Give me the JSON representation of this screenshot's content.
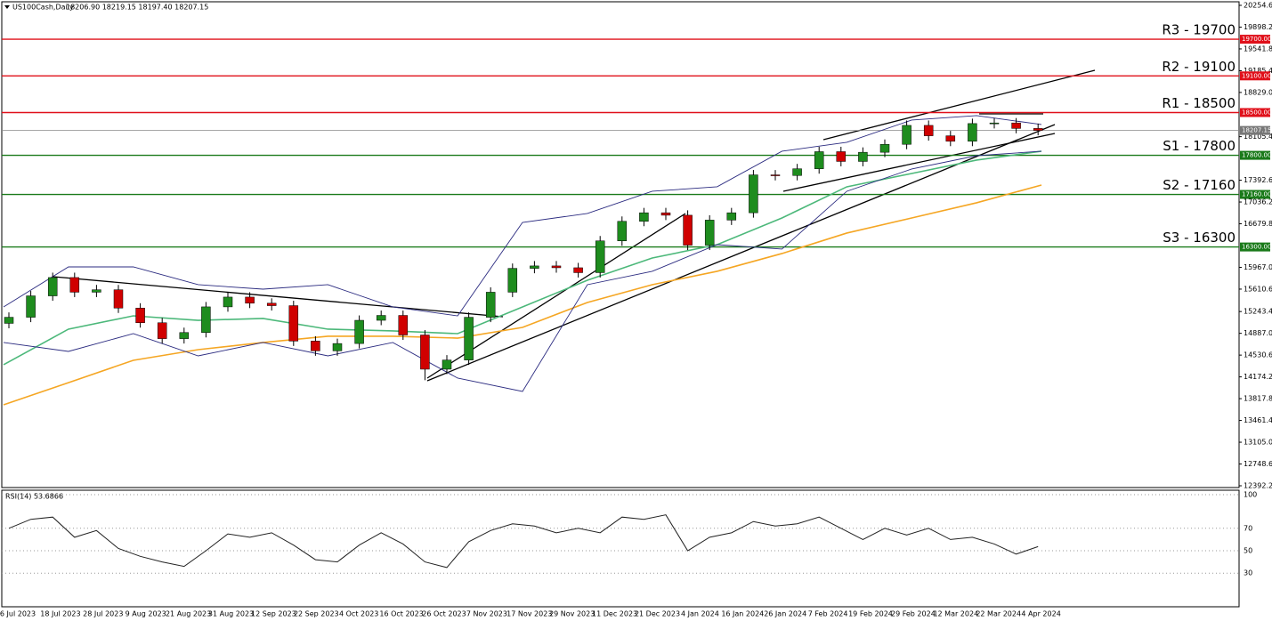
{
  "header": {
    "title": "US100Cash,Daily",
    "ohlc": "18206.90 18219.15 18197.40 18207.15"
  },
  "chart_data": [
    {
      "type": "candlestick",
      "ylim": [
        12392.2,
        20254.6
      ],
      "yticks": [
        {
          "value": 20254.6,
          "label": "20254.60"
        },
        {
          "value": 19898.2,
          "label": "19898.20"
        },
        {
          "value": 19541.8,
          "label": "19541.80"
        },
        {
          "value": 19185.4,
          "label": "19185.40"
        },
        {
          "value": 18829,
          "label": "18829.00"
        },
        {
          "value": 18105.4,
          "label": "18105.40"
        },
        {
          "value": 17392.6,
          "label": "17392.60"
        },
        {
          "value": 17036.2,
          "label": "17036.20"
        },
        {
          "value": 16679.8,
          "label": "16679.80"
        },
        {
          "value": 15967,
          "label": "15967.00"
        },
        {
          "value": 15610.6,
          "label": "15610.60"
        },
        {
          "value": 15243.4,
          "label": "15243.40"
        },
        {
          "value": 14887,
          "label": "14887.00"
        },
        {
          "value": 14530.6,
          "label": "14530.60"
        },
        {
          "value": 14174.2,
          "label": "14174.20"
        },
        {
          "value": 13817.8,
          "label": "13817.80"
        },
        {
          "value": 13461.4,
          "label": "13461.40"
        },
        {
          "value": 13105,
          "label": "13105.00"
        },
        {
          "value": 12748.6,
          "label": "12748.60"
        },
        {
          "value": 12392.2,
          "label": "12392.20"
        }
      ],
      "x_labels": [
        "6 Jul 2023",
        "18 Jul 2023",
        "28 Jul 2023",
        "9 Aug 2023",
        "21 Aug 2023",
        "31 Aug 2023",
        "12 Sep 2023",
        "22 Sep 2023",
        "4 Oct 2023",
        "16 Oct 2023",
        "26 Oct 2023",
        "7 Nov 2023",
        "17 Nov 2023",
        "29 Nov 2023",
        "11 Dec 2023",
        "21 Dec 2023",
        "4 Jan 2024",
        "16 Jan 2024",
        "26 Jan 2024",
        "7 Feb 2024",
        "19 Feb 2024",
        "29 Feb 2024",
        "12 Mar 2024",
        "22 Mar 2024",
        "4 Apr 2024"
      ],
      "open": [
        15050,
        15150,
        15500,
        15800,
        15560,
        15600,
        15300,
        15060,
        14800,
        14900,
        15320,
        15480,
        15380,
        15340,
        14760,
        14600,
        14720,
        15100,
        15180,
        14860,
        14300,
        14450,
        15150,
        15560,
        15950,
        15990,
        15960,
        15880,
        16400,
        16720,
        16860,
        16820,
        16330,
        16740,
        16860,
        17480,
        17470,
        17580,
        17860,
        17700,
        17850,
        17980,
        18290,
        18120,
        18030,
        18320,
        18330,
        18240
      ],
      "high": [
        15230,
        15580,
        15880,
        15880,
        15680,
        15680,
        15380,
        15140,
        14980,
        15400,
        15560,
        15560,
        15460,
        15420,
        14840,
        14800,
        15180,
        15260,
        15260,
        14940,
        14530,
        15230,
        15640,
        16030,
        16070,
        16070,
        16040,
        16480,
        16800,
        16940,
        16940,
        16900,
        16820,
        16940,
        17560,
        17560,
        17660,
        17940,
        17940,
        17930,
        18060,
        18370,
        18370,
        18200,
        18400,
        18410,
        18410,
        18320
      ],
      "low": [
        14970,
        15070,
        15420,
        15480,
        15480,
        15220,
        14980,
        14720,
        14720,
        14820,
        15240,
        15300,
        15260,
        14680,
        14520,
        14520,
        14640,
        15020,
        14780,
        14120,
        14220,
        14370,
        15070,
        15480,
        15870,
        15880,
        15800,
        15800,
        16320,
        16640,
        16740,
        16250,
        16250,
        16660,
        16780,
        17390,
        17390,
        17500,
        17620,
        17620,
        17770,
        17900,
        18040,
        17950,
        17950,
        18240,
        18160,
        18127
      ],
      "close": [
        15150,
        15500,
        15800,
        15560,
        15600,
        15300,
        15060,
        14800,
        14900,
        15320,
        15480,
        15380,
        15340,
        14760,
        14600,
        14720,
        15100,
        15180,
        14860,
        14300,
        14450,
        15150,
        15560,
        15950,
        15990,
        15960,
        15880,
        16400,
        16720,
        16860,
        16820,
        16330,
        16740,
        16860,
        17480,
        17470,
        17580,
        17860,
        17700,
        17850,
        17980,
        18290,
        18120,
        18030,
        18320,
        18330,
        18240,
        18207.15
      ],
      "up_color": "#1e8c1e",
      "down_color": "#d00000",
      "overlays": [
        {
          "color": "#f5a623",
          "values": [
            13717,
            14080,
            14445,
            14620,
            14737,
            14839,
            14839,
            14809,
            14984,
            15392,
            15683,
            15902,
            16193,
            16528,
            16775,
            17023,
            17314
          ]
        },
        {
          "color": "#4cb87a",
          "values": [
            14373,
            14955,
            15173,
            15100,
            15130,
            14955,
            14926,
            14882,
            15319,
            15756,
            16120,
            16338,
            16775,
            17285,
            17503,
            17722,
            17867
          ]
        },
        {
          "color": "#2b2b80",
          "values": [
            15319,
            15974,
            15974,
            15683,
            15610,
            15683,
            15319,
            15173,
            16702,
            16848,
            17212,
            17285,
            17867,
            18013,
            18377,
            18450,
            18304
          ]
        },
        {
          "color": "#2b2b80",
          "values": [
            14737,
            14591,
            14882,
            14518,
            14737,
            14518,
            14737,
            14154,
            13936,
            15683,
            15902,
            16338,
            16266,
            17212,
            17576,
            17794,
            17867
          ]
        }
      ],
      "levels": [
        {
          "label": "R3 - 19700",
          "value": 19700,
          "value_label": "19700.00",
          "color": "#e0101a"
        },
        {
          "label": "R2 - 19100",
          "value": 19100,
          "value_label": "19100.00",
          "color": "#e0101a"
        },
        {
          "label": "R1 - 18500",
          "value": 18500,
          "value_label": "18500.00",
          "color": "#e0101a"
        },
        {
          "label": "S1 - 17800",
          "value": 17800,
          "value_label": "17800.00",
          "color": "#1a7a1a"
        },
        {
          "label": "S2 - 17160",
          "value": 17160,
          "value_label": "17160.00",
          "color": "#1a7a1a"
        },
        {
          "label": "S3 - 16300",
          "value": 16300,
          "value_label": "16300.00",
          "color": "#1a7a1a"
        }
      ],
      "last_price": {
        "value": 18207.15,
        "label": "18207.15"
      }
    },
    {
      "type": "line",
      "title": "RSI(14) 53.6866",
      "ylim": [
        0,
        100
      ],
      "yticks": [
        30,
        50,
        70,
        100
      ],
      "grid": true,
      "color": "#222",
      "values": [
        70,
        78,
        80,
        62,
        68,
        52,
        45,
        40,
        36,
        50,
        65,
        62,
        66,
        55,
        42,
        40,
        55,
        66,
        56,
        40,
        35,
        58,
        68,
        74,
        72,
        66,
        70,
        66,
        80,
        78,
        82,
        50,
        62,
        66,
        76,
        72,
        74,
        80,
        70,
        60,
        70,
        64,
        70,
        60,
        62,
        56,
        47,
        53.6866
      ]
    }
  ]
}
